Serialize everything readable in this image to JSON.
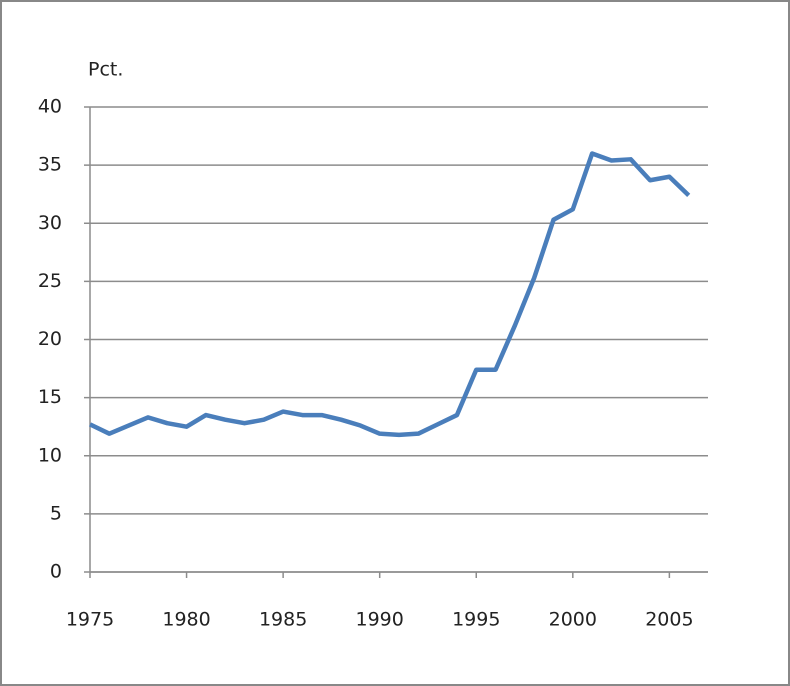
{
  "chart_data": {
    "type": "line",
    "y_label": "Pct.",
    "x": [
      1975,
      1976,
      1977,
      1978,
      1979,
      1980,
      1981,
      1982,
      1983,
      1984,
      1985,
      1986,
      1987,
      1988,
      1989,
      1990,
      1991,
      1992,
      1993,
      1994,
      1995,
      1996,
      1997,
      1998,
      1999,
      2000,
      2001,
      2002,
      2003,
      2004,
      2005,
      2006
    ],
    "series": [
      {
        "color": "#4a7ebb",
        "values": [
          12.7,
          11.9,
          12.6,
          13.3,
          12.8,
          12.5,
          13.5,
          13.1,
          12.8,
          13.1,
          13.8,
          13.5,
          13.5,
          13.1,
          12.6,
          11.9,
          11.8,
          11.9,
          12.7,
          13.5,
          17.4,
          17.4,
          21.2,
          25.3,
          30.3,
          31.2,
          36.0,
          35.4,
          35.5,
          33.7,
          34.0,
          32.4
        ]
      }
    ],
    "xlim": [
      1975,
      2007
    ],
    "xticks": [
      1975,
      1980,
      1985,
      1990,
      1995,
      2000,
      2005
    ],
    "ylim": [
      0,
      40
    ],
    "yticks": [
      0,
      5,
      10,
      15,
      20,
      25,
      30,
      35,
      40
    ],
    "grid": true
  }
}
